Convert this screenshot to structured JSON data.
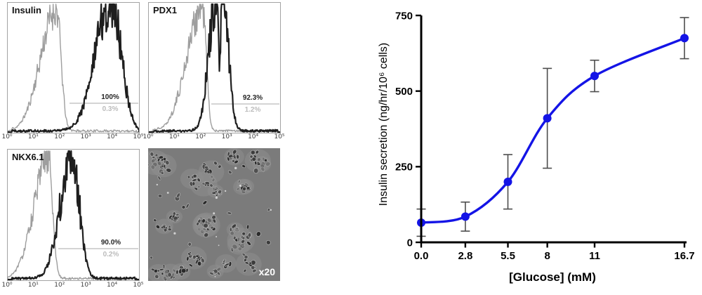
{
  "chart_data": [
    {
      "type": "histogram-overlay",
      "panel_title": "Insulin",
      "marker_percent": "100%",
      "control_percent": "0.3%",
      "x_tick_labels": [
        "10⁰",
        "10¹",
        "10²",
        "10³",
        "10⁴",
        "10⁵"
      ],
      "series": [
        {
          "name": "unstained-control",
          "color": "#9e9e9e",
          "peaks": [
            {
              "c": 1.85,
              "sl": 0.6,
              "sr": 0.18,
              "h": 0.96
            }
          ]
        },
        {
          "name": "stained",
          "color": "#1e1e1e",
          "peaks": [
            {
              "c": 3.95,
              "sl": 0.6,
              "sr": 0.38,
              "h": 1.03
            }
          ]
        }
      ]
    },
    {
      "type": "histogram-overlay",
      "panel_title": "PDX1",
      "marker_percent": "92.3%",
      "control_percent": "1.2%",
      "x_tick_labels": [
        "10⁰",
        "10¹",
        "10²",
        "10³",
        "10⁴",
        "10⁵"
      ],
      "series": [
        {
          "name": "unstained-control",
          "color": "#9e9e9e",
          "peaks": [
            {
              "c": 2.05,
              "sl": 0.6,
              "sr": 0.14,
              "h": 0.98
            }
          ]
        },
        {
          "name": "stained",
          "color": "#1e1e1e",
          "peaks": [
            {
              "c": 2.55,
              "sl": 0.28,
              "sr": 0.12,
              "h": 1.02
            },
            {
              "c": 2.82,
              "sl": 0.1,
              "sr": 0.22,
              "h": 1.04
            }
          ]
        }
      ]
    },
    {
      "type": "histogram-overlay",
      "panel_title": "NKX6.1",
      "marker_percent": "90.0%",
      "control_percent": "0.2%",
      "x_tick_labels": [
        "10⁰",
        "10¹",
        "10²",
        "10³",
        "10⁴",
        "10⁵"
      ],
      "series": [
        {
          "name": "unstained-control",
          "color": "#9e9e9e",
          "peaks": [
            {
              "c": 1.55,
              "sl": 0.55,
              "sr": 0.16,
              "h": 0.94
            }
          ]
        },
        {
          "name": "stained",
          "color": "#1e1e1e",
          "peaks": [
            {
              "c": 2.45,
              "sl": 0.45,
              "sr": 0.28,
              "h": 0.96
            }
          ]
        }
      ]
    },
    {
      "type": "line",
      "x": [
        0.0,
        2.8,
        5.5,
        8,
        11,
        16.7
      ],
      "y": [
        65,
        85,
        200,
        410,
        550,
        675
      ],
      "y_err": [
        45,
        48,
        90,
        165,
        52,
        68
      ],
      "x_tick_labels": [
        "0.0",
        "2.8",
        "5.5",
        "8",
        "11",
        "16.7"
      ],
      "y_ticks": [
        0,
        250,
        500,
        750
      ],
      "ylim": [
        0,
        750
      ],
      "xlim": [
        0,
        16.7
      ],
      "xlabel": "[Glucose] (mM)",
      "ylabel": "Insulin secretion (ng/hr/10⁶ cells)",
      "line_color": "#1414e6",
      "error_color": "#4d4d4d"
    },
    {
      "type": "micrograph",
      "magnification": "x20"
    }
  ]
}
